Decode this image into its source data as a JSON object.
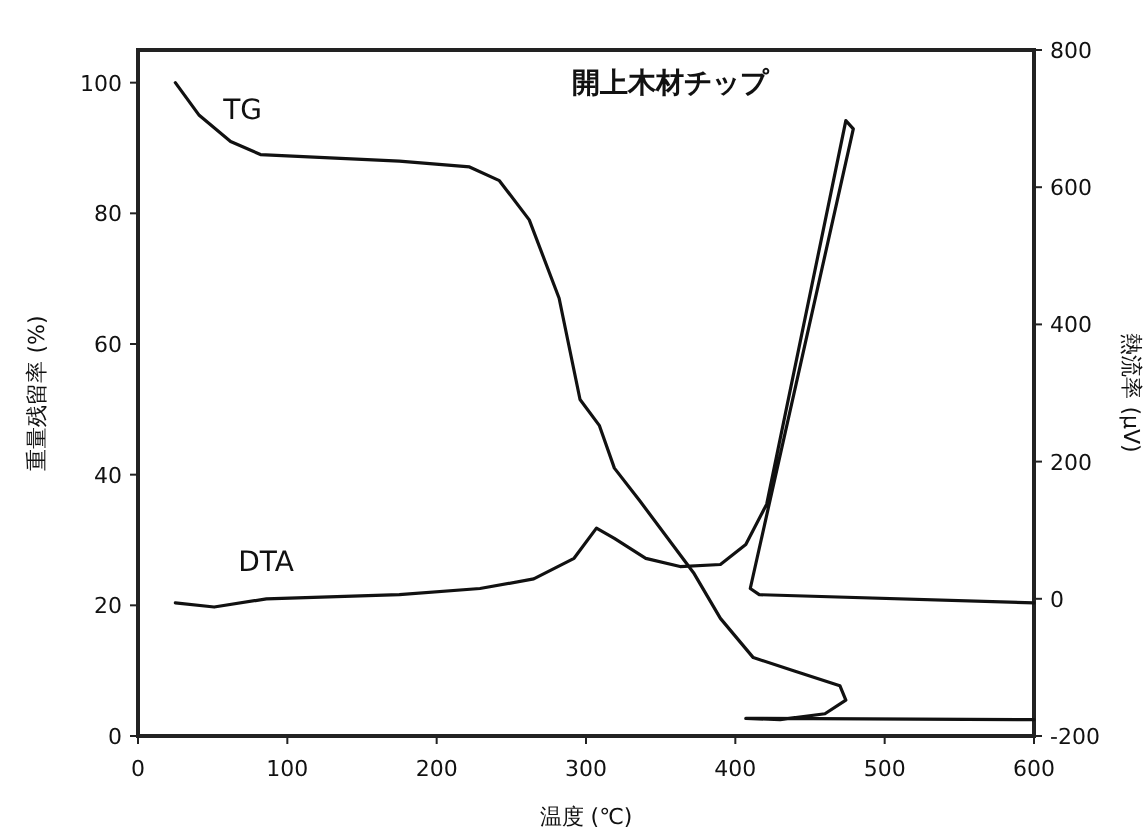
{
  "chart_data": {
    "type": "line",
    "title": "開上木材チップ",
    "xlabel": "温度 (℃)",
    "ylabel": "重量残留率 (%)",
    "y2label": "熱流率 (μV)",
    "xlim": [
      0,
      600
    ],
    "xticks": [
      0,
      100,
      200,
      300,
      400,
      500,
      600
    ],
    "ylim": [
      0,
      105
    ],
    "yticks": [
      0,
      20,
      40,
      60,
      80,
      100
    ],
    "y2lim": [
      -200,
      800
    ],
    "y2ticks": [
      -200,
      0,
      200,
      400,
      600,
      800
    ],
    "grid": false,
    "marker": "none",
    "line_style": "solid",
    "series": [
      {
        "name": "TG",
        "color": "#111111",
        "x": [
          25,
          41,
          62,
          82,
          175,
          222,
          242,
          262,
          282,
          296,
          309,
          319,
          336,
          372,
          390,
          412,
          439,
          470,
          474,
          460,
          430,
          407,
          600
        ],
        "values": [
          100,
          95,
          91,
          89,
          88,
          87.1,
          85,
          79,
          67,
          51.5,
          47.5,
          41,
          36,
          25,
          18,
          12,
          10,
          7.7,
          5.5,
          3.4,
          2.5,
          2.7,
          2.5
        ]
      },
      {
        "name": "DTA",
        "color": "#111111",
        "axis": "y2",
        "x": [
          25,
          51,
          86,
          175,
          229,
          265,
          292,
          307,
          319,
          340,
          363,
          390,
          407,
          421,
          474,
          479,
          410,
          416,
          600
        ],
        "values": [
          -6,
          -12,
          0,
          6,
          15,
          29,
          59,
          103,
          88,
          59,
          47,
          50,
          79,
          138,
          697,
          685,
          15,
          6,
          -6
        ]
      }
    ]
  }
}
